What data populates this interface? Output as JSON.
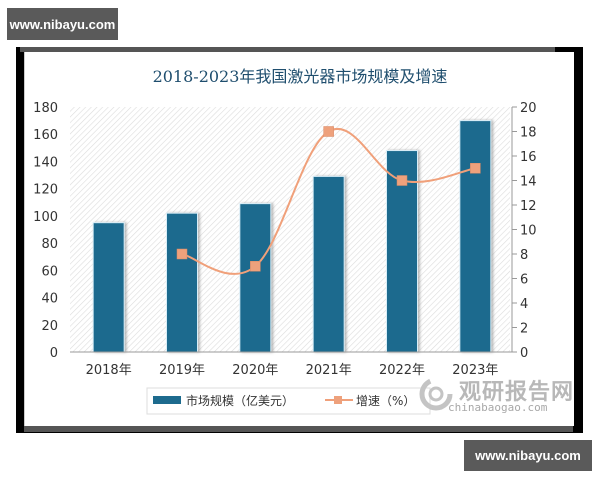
{
  "watermarks": {
    "top": "www.nibayu.com",
    "bottom": "www.nibayu.com"
  },
  "title": "2018-2023年我国激光器市场规模及增速",
  "legend": {
    "bar_label": "市场规模（亿美元）",
    "line_label": "增速（%）"
  },
  "logo": {
    "name": "观研报告网",
    "url": "chinabaogao.com"
  },
  "colors": {
    "bar": "#1d6b8e",
    "line": "#f0a07a",
    "marker": "#eea17c",
    "axis_text": "#333333",
    "title": "#1f4e6e"
  },
  "chart_data": {
    "type": "bar",
    "title": "2018-2023年我国激光器市场规模及增速",
    "categories": [
      "2018年",
      "2019年",
      "2020年",
      "2021年",
      "2022年",
      "2023年"
    ],
    "series": [
      {
        "name": "市场规模（亿美元）",
        "type": "bar",
        "axis": "left",
        "values": [
          95,
          102,
          109,
          129,
          148,
          170
        ]
      },
      {
        "name": "增速（%）",
        "type": "line",
        "axis": "right",
        "values": [
          null,
          8,
          7,
          18,
          14,
          15
        ]
      }
    ],
    "xlabel": "",
    "ylabel": "",
    "ylim": [
      0,
      180
    ],
    "yticks": [
      0,
      20,
      40,
      60,
      80,
      100,
      120,
      140,
      160,
      180
    ],
    "y2lim": [
      0,
      20
    ],
    "y2ticks": [
      0,
      2,
      4,
      6,
      8,
      10,
      12,
      14,
      16,
      18,
      20
    ],
    "grid": false,
    "legend_position": "bottom"
  }
}
